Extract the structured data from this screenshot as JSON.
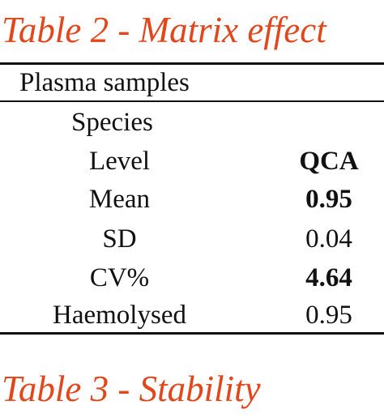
{
  "headings": {
    "table2": "Table 2 - Matrix effect",
    "table3": "Table 3 - Stability"
  },
  "table": {
    "rows": {
      "plasma": {
        "label": "Plasma samples"
      },
      "species": {
        "label": "Species"
      },
      "level": {
        "label": "Level",
        "value": "QCA"
      },
      "mean": {
        "label": "Mean",
        "value": "0.95"
      },
      "sd": {
        "label": "SD",
        "value": "0.04"
      },
      "cv": {
        "label": "CV%",
        "value": "4.64"
      },
      "haemolysed": {
        "label": "Haemolysed",
        "value": "0.95"
      }
    }
  }
}
